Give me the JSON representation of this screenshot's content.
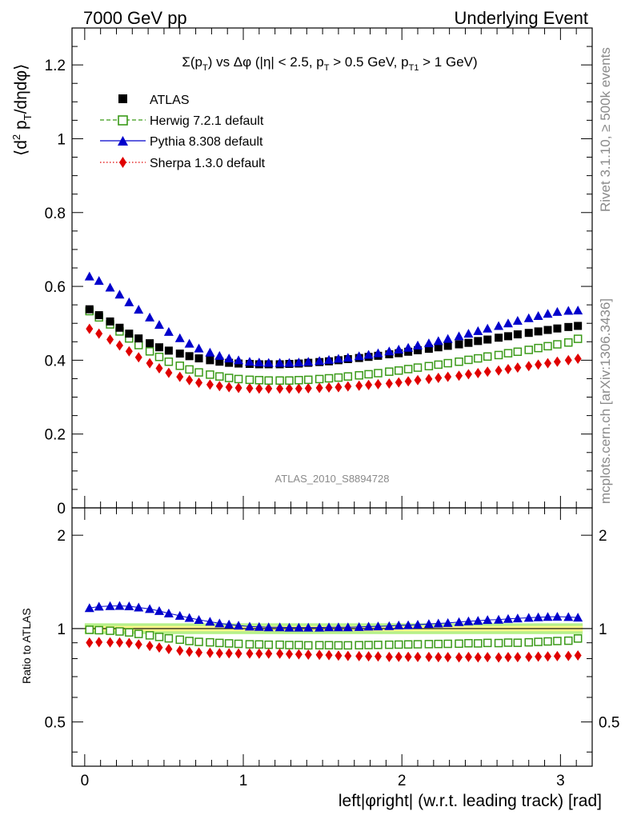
{
  "header": {
    "left": "7000 GeV pp",
    "right": "Underlying Event"
  },
  "side_text": {
    "rivet": "Rivet 3.1.10, ≥ 500k events",
    "mcplots": "mcplots.cern.ch [arXiv:1306.3436]"
  },
  "chart_data": [
    {
      "type": "scatter",
      "panel": "main",
      "title": "Σ(p_T) vs Δφ (|η| < 2.5, p_T > 0.5 GeV, p_T1 > 1 GeV)",
      "ylabel": "⟨d² p_T/dηdφ⟩",
      "xlabel": "left|φright| (w.r.t. leading track) [rad]",
      "watermark": "ATLAS_2010_S8894728",
      "xlim": [
        -0.08,
        3.2
      ],
      "ylim": [
        0,
        1.3
      ],
      "yticks": [
        "0",
        "0.2",
        "0.4",
        "0.6",
        "0.8",
        "1",
        "1.2"
      ],
      "xticks": [
        "0",
        "1",
        "2",
        "3"
      ],
      "legend_position": "top-left",
      "x": [
        0.03,
        0.09,
        0.16,
        0.22,
        0.28,
        0.34,
        0.41,
        0.47,
        0.53,
        0.6,
        0.66,
        0.72,
        0.79,
        0.85,
        0.91,
        0.97,
        1.04,
        1.1,
        1.16,
        1.23,
        1.29,
        1.35,
        1.41,
        1.48,
        1.54,
        1.6,
        1.66,
        1.73,
        1.79,
        1.85,
        1.92,
        1.98,
        2.04,
        2.1,
        2.17,
        2.23,
        2.29,
        2.36,
        2.42,
        2.48,
        2.54,
        2.61,
        2.67,
        2.73,
        2.8,
        2.86,
        2.92,
        2.98,
        3.05,
        3.11
      ],
      "series": [
        {
          "name": "ATLAS",
          "color": "#000000",
          "marker": "square-filled",
          "values": [
            0.538,
            0.522,
            0.505,
            0.488,
            0.472,
            0.459,
            0.446,
            0.435,
            0.426,
            0.418,
            0.411,
            0.405,
            0.4,
            0.396,
            0.393,
            0.391,
            0.39,
            0.389,
            0.389,
            0.389,
            0.39,
            0.391,
            0.393,
            0.395,
            0.397,
            0.4,
            0.403,
            0.406,
            0.409,
            0.412,
            0.416,
            0.419,
            0.423,
            0.427,
            0.431,
            0.435,
            0.439,
            0.443,
            0.447,
            0.452,
            0.456,
            0.461,
            0.465,
            0.47,
            0.474,
            0.478,
            0.482,
            0.486,
            0.49,
            0.493
          ]
        },
        {
          "name": "Herwig 7.2.1 default",
          "color": "#3a9a18",
          "marker": "square-open",
          "line": "dashed",
          "values": [
            0.533,
            0.516,
            0.497,
            0.478,
            0.459,
            0.441,
            0.424,
            0.409,
            0.396,
            0.385,
            0.375,
            0.367,
            0.361,
            0.356,
            0.352,
            0.349,
            0.347,
            0.346,
            0.345,
            0.345,
            0.345,
            0.346,
            0.347,
            0.349,
            0.351,
            0.353,
            0.356,
            0.359,
            0.362,
            0.365,
            0.369,
            0.372,
            0.376,
            0.38,
            0.384,
            0.388,
            0.392,
            0.396,
            0.401,
            0.405,
            0.41,
            0.414,
            0.419,
            0.423,
            0.428,
            0.433,
            0.438,
            0.443,
            0.448,
            0.458
          ]
        },
        {
          "name": "Pythia 8.308 default",
          "color": "#0000cc",
          "marker": "triangle-filled",
          "line": "solid",
          "values": [
            0.627,
            0.615,
            0.597,
            0.578,
            0.557,
            0.537,
            0.516,
            0.496,
            0.477,
            0.46,
            0.445,
            0.432,
            0.421,
            0.412,
            0.405,
            0.4,
            0.396,
            0.394,
            0.393,
            0.393,
            0.393,
            0.394,
            0.396,
            0.398,
            0.401,
            0.404,
            0.407,
            0.411,
            0.415,
            0.419,
            0.424,
            0.429,
            0.434,
            0.44,
            0.446,
            0.452,
            0.458,
            0.465,
            0.472,
            0.479,
            0.486,
            0.493,
            0.5,
            0.507,
            0.514,
            0.52,
            0.526,
            0.531,
            0.534,
            0.535
          ]
        },
        {
          "name": "Sherpa 1.3.0 default",
          "color": "#e00000",
          "marker": "diamond-filled",
          "line": "dotted",
          "values": [
            0.485,
            0.472,
            0.456,
            0.44,
            0.424,
            0.408,
            0.392,
            0.378,
            0.366,
            0.355,
            0.346,
            0.339,
            0.334,
            0.33,
            0.327,
            0.325,
            0.324,
            0.323,
            0.323,
            0.323,
            0.323,
            0.323,
            0.324,
            0.325,
            0.326,
            0.327,
            0.329,
            0.331,
            0.333,
            0.335,
            0.337,
            0.34,
            0.343,
            0.346,
            0.349,
            0.352,
            0.355,
            0.358,
            0.362,
            0.365,
            0.369,
            0.372,
            0.376,
            0.38,
            0.384,
            0.388,
            0.392,
            0.396,
            0.4,
            0.404
          ]
        }
      ]
    },
    {
      "type": "scatter",
      "panel": "ratio",
      "ylabel": "Ratio to ATLAS",
      "xlim": [
        -0.08,
        3.2
      ],
      "ylim": [
        0.36,
        2.45
      ],
      "yscale": "log",
      "yticks": [
        "0.5",
        "1",
        "2"
      ],
      "xticks": [
        "0",
        "1",
        "2",
        "3"
      ],
      "band": {
        "color_inner": "#faf68a",
        "color_outer": "#b6f08a",
        "inner": [
          0.98,
          1.02
        ],
        "outer": [
          0.96,
          1.04
        ]
      },
      "series": [
        {
          "name": "Herwig 7.2.1 default",
          "color": "#3a9a18",
          "marker": "square-open",
          "values": [
            0.991,
            0.988,
            0.984,
            0.979,
            0.972,
            0.961,
            0.951,
            0.94,
            0.93,
            0.921,
            0.912,
            0.906,
            0.903,
            0.899,
            0.896,
            0.893,
            0.89,
            0.889,
            0.887,
            0.887,
            0.885,
            0.885,
            0.883,
            0.884,
            0.884,
            0.883,
            0.883,
            0.884,
            0.885,
            0.886,
            0.887,
            0.888,
            0.889,
            0.89,
            0.891,
            0.892,
            0.893,
            0.894,
            0.897,
            0.896,
            0.899,
            0.898,
            0.901,
            0.9,
            0.903,
            0.906,
            0.909,
            0.912,
            0.914,
            0.929
          ]
        },
        {
          "name": "Pythia 8.308 default",
          "color": "#0000cc",
          "marker": "triangle-filled",
          "values": [
            1.165,
            1.178,
            1.182,
            1.184,
            1.18,
            1.17,
            1.157,
            1.14,
            1.12,
            1.1,
            1.083,
            1.067,
            1.053,
            1.04,
            1.031,
            1.023,
            1.015,
            1.013,
            1.01,
            1.01,
            1.008,
            1.008,
            1.008,
            1.008,
            1.01,
            1.01,
            1.01,
            1.012,
            1.015,
            1.017,
            1.019,
            1.024,
            1.026,
            1.03,
            1.035,
            1.039,
            1.043,
            1.05,
            1.056,
            1.06,
            1.066,
            1.069,
            1.075,
            1.079,
            1.084,
            1.088,
            1.091,
            1.093,
            1.09,
            1.085
          ]
        },
        {
          "name": "Sherpa 1.3.0 default",
          "color": "#e00000",
          "marker": "diamond-filled",
          "values": [
            0.901,
            0.904,
            0.903,
            0.902,
            0.898,
            0.889,
            0.879,
            0.869,
            0.859,
            0.849,
            0.842,
            0.837,
            0.835,
            0.833,
            0.832,
            0.831,
            0.831,
            0.83,
            0.83,
            0.83,
            0.828,
            0.826,
            0.824,
            0.823,
            0.821,
            0.818,
            0.816,
            0.815,
            0.814,
            0.813,
            0.81,
            0.811,
            0.811,
            0.81,
            0.81,
            0.809,
            0.809,
            0.808,
            0.81,
            0.808,
            0.809,
            0.807,
            0.809,
            0.809,
            0.81,
            0.812,
            0.813,
            0.815,
            0.816,
            0.819
          ]
        }
      ]
    }
  ]
}
